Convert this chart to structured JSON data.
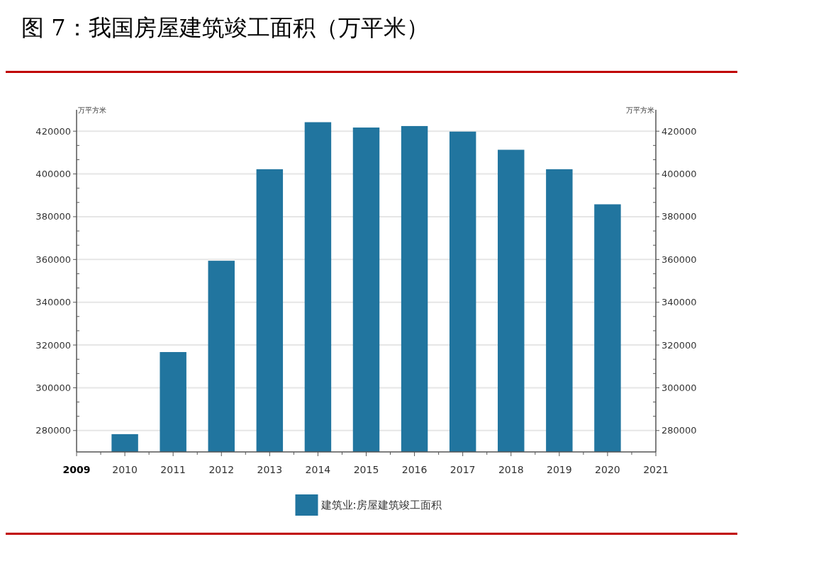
{
  "chart_data": {
    "type": "bar",
    "title": "图 7：我国房屋建筑竣工面积（万平米）",
    "ylabel": "万平方米",
    "y2label": "万平方米",
    "x": [
      2010,
      2011,
      2012,
      2013,
      2014,
      2015,
      2016,
      2017,
      2018,
      2019,
      2020
    ],
    "series": [
      {
        "name": "建筑业:房屋建筑竣工面积",
        "color": "#21759f",
        "values": [
          278300,
          316700,
          359400,
          402200,
          424200,
          421700,
          422400,
          419800,
          411300,
          402200,
          385800
        ]
      }
    ],
    "xlim": [
      2009,
      2021
    ],
    "xticks": [
      2009,
      2010,
      2011,
      2012,
      2013,
      2014,
      2015,
      2016,
      2017,
      2018,
      2019,
      2020,
      2021
    ],
    "ylim": [
      270000,
      430000
    ],
    "yticks": [
      280000,
      300000,
      320000,
      340000,
      360000,
      380000,
      400000,
      420000
    ],
    "y2lim": [
      270000,
      430000
    ],
    "y2ticks": [
      280000,
      300000,
      320000,
      340000,
      360000,
      380000,
      400000,
      420000
    ],
    "grid": "y",
    "legend": "bottom"
  }
}
